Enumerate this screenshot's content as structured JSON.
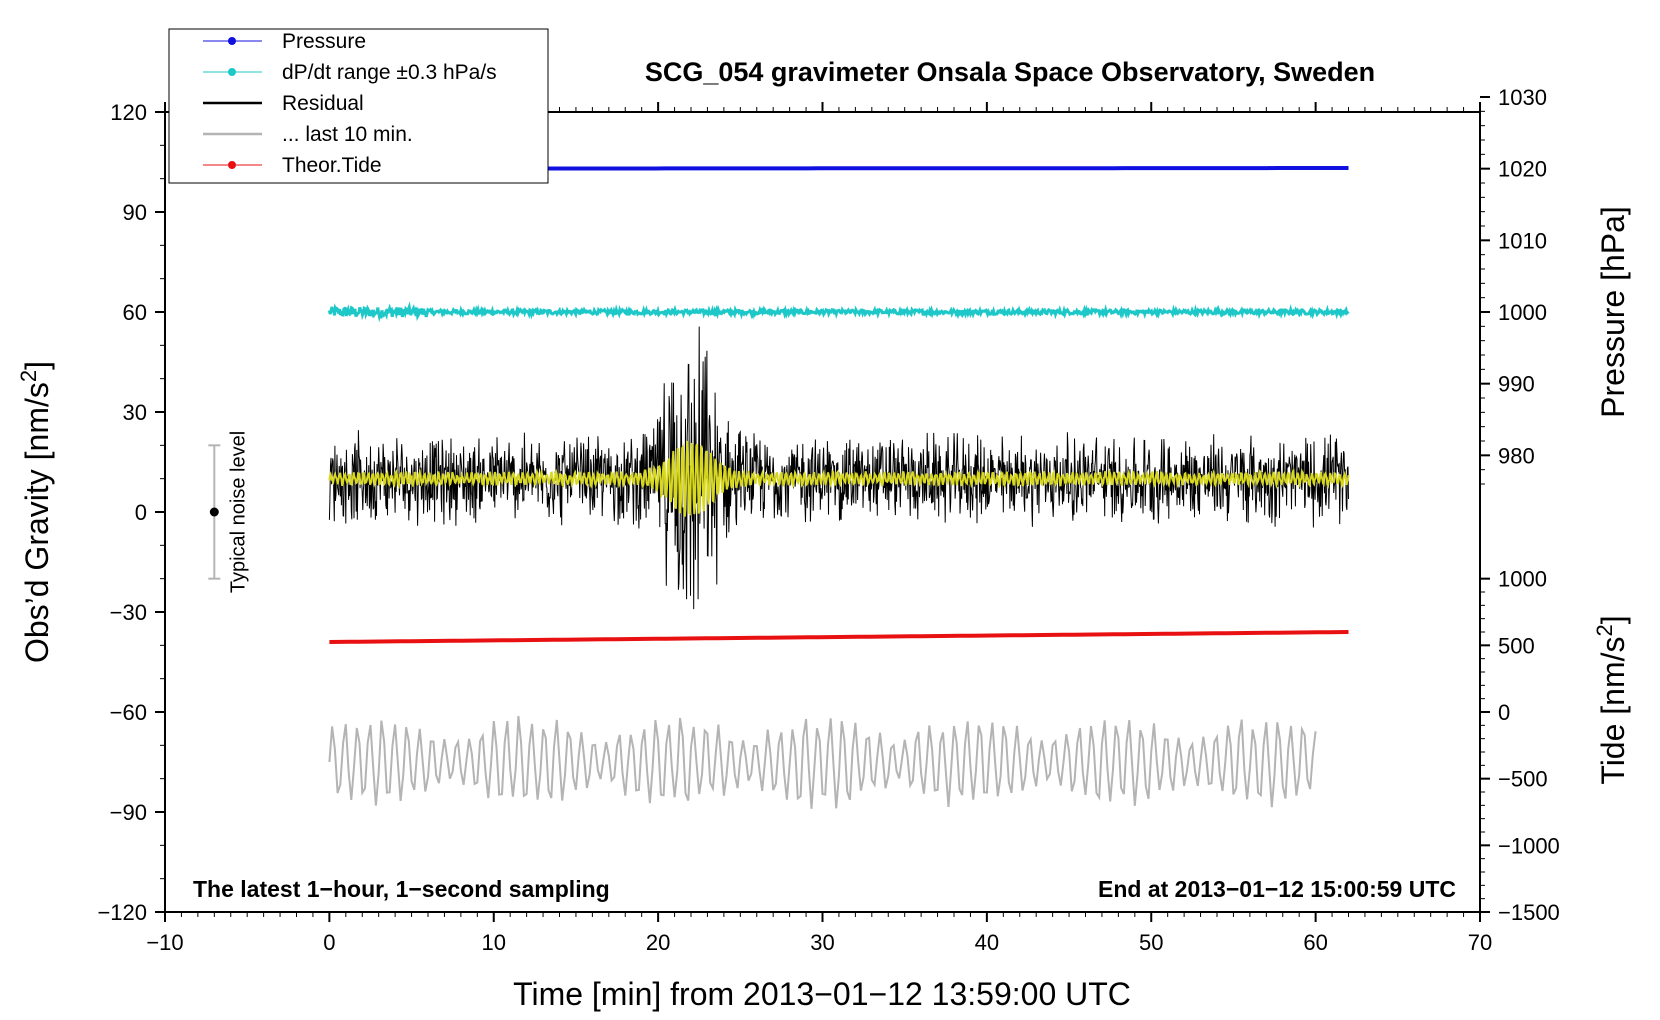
{
  "chart_data": {
    "type": "line",
    "title": "SCG_054 gravimeter Onsala Space Observatory, Sweden",
    "xlabel": "Time [min] from 2013−01−12 13:59:00 UTC",
    "ylabel_left_main": "Obs’d Gravity [nm/s",
    "ylabel_left_sup": "2",
    "ylabel_left_end": "]",
    "ylabel_right_pressure": "Pressure [hPa]",
    "ylabel_right_tide_main": "Tide [nm/s",
    "ylabel_right_tide_sup": "2",
    "ylabel_right_tide_end": "]",
    "xlim": [
      -10,
      70
    ],
    "ylim": [
      -120,
      120
    ],
    "pressure_lim": [
      975,
      1030
    ],
    "tide_lim": [
      -1500,
      1000
    ],
    "x_ticks": [
      "−10",
      "0",
      "10",
      "20",
      "30",
      "40",
      "50",
      "60",
      "70"
    ],
    "x_tick_values": [
      -10,
      0,
      10,
      20,
      30,
      40,
      50,
      60,
      70
    ],
    "y_ticks": [
      "120",
      "90",
      "60",
      "30",
      "0",
      "−30",
      "−60",
      "−90",
      "−120"
    ],
    "y_tick_values": [
      120,
      90,
      60,
      30,
      0,
      -30,
      -60,
      -90,
      -120
    ],
    "pressure_ticks": [
      "1030",
      "1020",
      "1010",
      "1000",
      "990",
      "980"
    ],
    "pressure_tick_values": [
      1030,
      1020,
      1010,
      1000,
      990,
      980
    ],
    "tide_ticks": [
      "1000",
      "500",
      "0",
      "−500",
      "−1000",
      "−1500"
    ],
    "tide_tick_values": [
      1000,
      500,
      0,
      -500,
      -1000,
      -1500
    ],
    "grid": false,
    "legend_position": "top-left",
    "series": [
      {
        "name": "Pressure",
        "color": "#1010e0",
        "style": "line-dot",
        "x_range": [
          0,
          62
        ],
        "y_start": 103,
        "y_end": 103.2
      },
      {
        "name": "dP/dt range ±0.3 hPa/s",
        "color": "#1ec8c8",
        "style": "line-dot",
        "x_range": [
          0,
          62
        ],
        "y_level": 60,
        "spread": 1.5
      },
      {
        "name": "Residual",
        "color": "#000000",
        "style": "line",
        "x_range": [
          0,
          62
        ],
        "y_level": 10,
        "amplitude": 15,
        "burst_center": 22,
        "burst_amplitude": 40
      },
      {
        "name": "... last 10 min.",
        "color": "#b4b4b4",
        "style": "line",
        "x_range": [
          0,
          60
        ],
        "y_level": -75,
        "amplitude": 15
      },
      {
        "name": "Theor.Tide",
        "color": "#e81010",
        "style": "line-dot",
        "x_range": [
          0,
          62
        ],
        "y_start": -39,
        "y_end": -36
      }
    ],
    "smoothed_residual": {
      "color": "#d8d820",
      "y_level": 10,
      "burst_center": 22,
      "burst_amplitude": 10
    },
    "noise_bar": {
      "label": "Typical noise level",
      "x": -7,
      "y_center": 0,
      "y_low": -20,
      "y_high": 20
    },
    "annotation_left": "The latest 1−hour, 1−second sampling",
    "annotation_right": "End at 2013−01−12 15:00:59 UTC"
  }
}
